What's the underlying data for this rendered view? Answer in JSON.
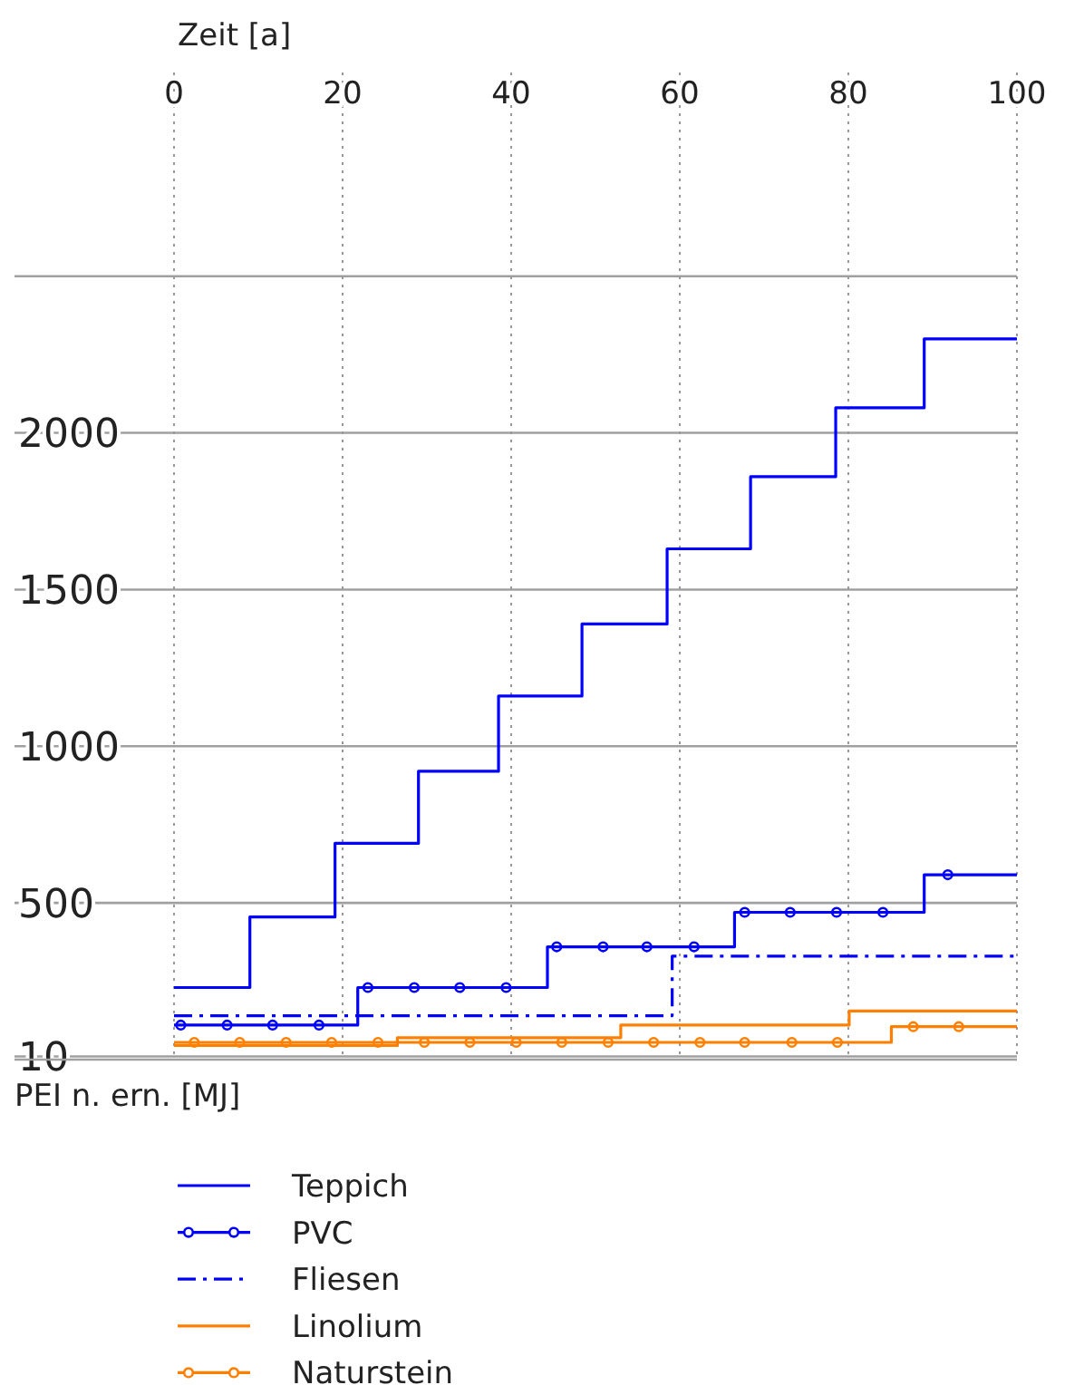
{
  "chart_data": {
    "type": "step",
    "xlabel": "Zeit [a]",
    "ylabel": "PEI n. ern. [MJ]",
    "xlim": [
      0,
      100
    ],
    "xticks": [
      0,
      20,
      40,
      60,
      80,
      100
    ],
    "ylim": [
      0,
      3150
    ],
    "yticks": [
      10,
      500,
      1000,
      1500,
      2000,
      {
        "value": 2500,
        "label": null
      }
    ],
    "grid": true,
    "legend": "bottom",
    "series": [
      {
        "name": "Teppich",
        "color": "#0000ff",
        "line_style": "solid",
        "x": [
          0,
          9,
          19.1,
          29,
          38.5,
          48.4,
          58.5,
          68.4,
          78.5,
          89,
          100
        ],
        "values": [
          230,
          455,
          690,
          920,
          1160,
          1390,
          1630,
          1860,
          2080,
          2300,
          2300
        ]
      },
      {
        "name": "PVC",
        "color": "#0000ff",
        "line_style": "solid",
        "x": [
          0,
          21.8,
          44.3,
          66.5,
          89,
          100
        ],
        "values": [
          110,
          230,
          360,
          470,
          590,
          590
        ]
      },
      {
        "type": "scatter",
        "color": "#0000ff",
        "marker": "circle",
        "x": [
          0.8,
          6.3,
          11.7,
          17.2,
          23,
          28.5,
          33.9,
          39.4,
          45.4,
          50.9,
          56.1,
          61.7,
          67.7,
          73.1,
          78.6,
          84.1,
          91.8
        ],
        "values": [
          110,
          110,
          110,
          110,
          230,
          230,
          230,
          230,
          360,
          360,
          360,
          360,
          470,
          470,
          470,
          470,
          590
        ]
      },
      {
        "name": "Fliesen",
        "color": "#0000ff",
        "line_style": "dashdot",
        "x": [
          0,
          59.1,
          100
        ],
        "values": [
          140,
          330,
          330
        ]
      },
      {
        "name": "Linolium",
        "color": "#ff8000",
        "line_style": "solid",
        "x": [
          0,
          26.5,
          53,
          80.1,
          100
        ],
        "values": [
          45,
          70,
          110,
          155,
          155
        ]
      },
      {
        "name": "Naturstein",
        "color": "#ff8000",
        "line_style": "solid",
        "x": [
          0,
          85.1,
          100
        ],
        "values": [
          55,
          105,
          105
        ]
      },
      {
        "type": "scatter",
        "color": "#ff8000",
        "marker": "circle",
        "x": [
          2.4,
          7.8,
          13.3,
          18.7,
          24.2,
          29.7,
          35.1,
          40.6,
          46,
          51.5,
          56.9,
          62.4,
          67.7,
          73.3,
          78.7,
          87.7,
          93.1
        ],
        "values": [
          55,
          55,
          55,
          55,
          55,
          55,
          55,
          55,
          55,
          55,
          55,
          55,
          55,
          55,
          55,
          105,
          105
        ]
      }
    ]
  }
}
